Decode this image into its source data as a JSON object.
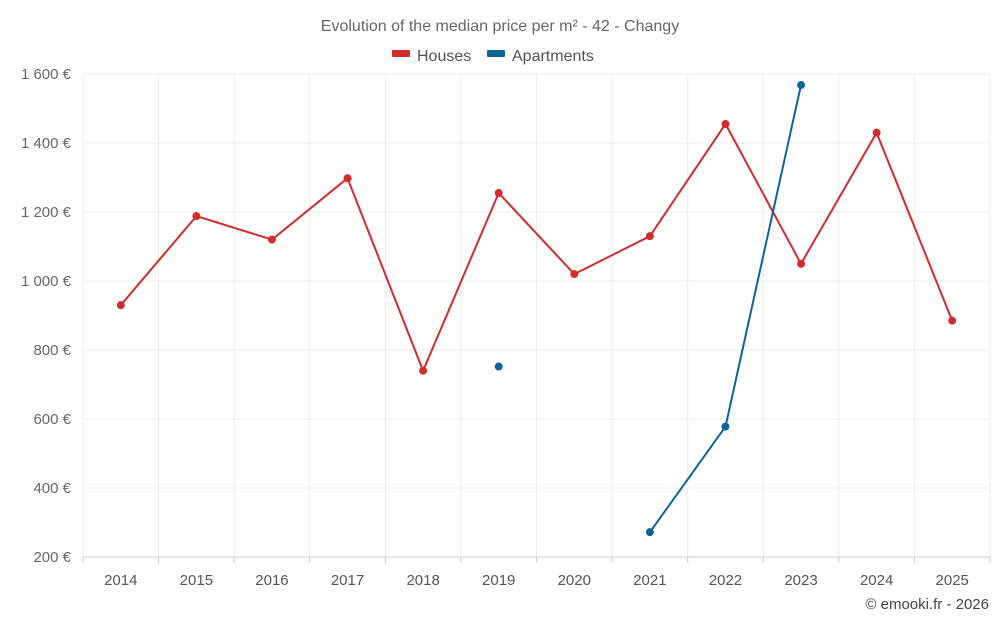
{
  "chart_data": {
    "type": "line",
    "title": "Evolution of the median price per m² - 42 - Changy",
    "xlabel": "",
    "ylabel": "",
    "ylim": [
      200,
      1600
    ],
    "y_ticks": [
      200,
      400,
      600,
      800,
      1000,
      1200,
      1400,
      1600
    ],
    "y_tick_labels": [
      "200 €",
      "400 €",
      "600 €",
      "800 €",
      "1 000 €",
      "1 200 €",
      "1 400 €",
      "1 600 €"
    ],
    "categories": [
      "2014",
      "2015",
      "2016",
      "2017",
      "2018",
      "2019",
      "2020",
      "2021",
      "2022",
      "2023",
      "2024",
      "2025"
    ],
    "grid": true,
    "legend_position": "top-center",
    "series": [
      {
        "name": "Houses",
        "color": "#d22b2b",
        "values": [
          930,
          1188,
          1120,
          1298,
          740,
          1255,
          1020,
          1130,
          1455,
          1050,
          1430,
          885
        ]
      },
      {
        "name": "Apartments",
        "color": "#0b6596",
        "values": [
          null,
          null,
          null,
          null,
          null,
          752,
          null,
          272,
          578,
          1568,
          null,
          null
        ]
      }
    ]
  },
  "credit": "© emooki.fr - 2026"
}
